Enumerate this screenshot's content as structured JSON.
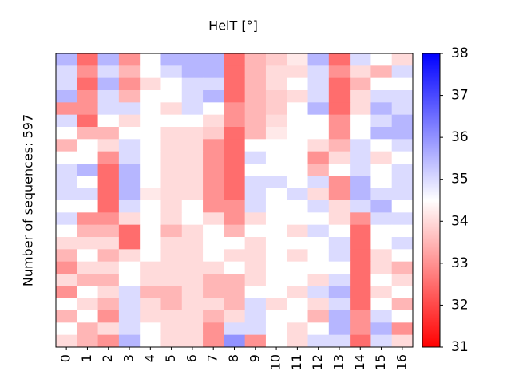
{
  "chart_data": {
    "type": "heatmap",
    "title": "HelT [°]",
    "y_label": "Number of sequences: 597",
    "x": [
      0,
      1,
      2,
      3,
      4,
      5,
      6,
      7,
      8,
      9,
      10,
      11,
      12,
      13,
      14,
      15,
      16
    ],
    "colormap": "bwr_r",
    "clim": [
      31,
      38
    ],
    "cticks": [
      31,
      32,
      33,
      34,
      35,
      36,
      37,
      38
    ],
    "values": [
      [
        35.5,
        32.5,
        35.5,
        33,
        34.5,
        35.5,
        35.5,
        35.5,
        32.5,
        33.5,
        33.8,
        34.2,
        35.5,
        32.5,
        35,
        34.5,
        34
      ],
      [
        35,
        33,
        35,
        33.5,
        34.5,
        35,
        35.5,
        35.5,
        32.5,
        33.5,
        34,
        34,
        35,
        33,
        34,
        33.5,
        35
      ],
      [
        35,
        32.5,
        35.5,
        33,
        34,
        34.5,
        35,
        35,
        32.5,
        33.5,
        34,
        34.5,
        35,
        32.5,
        33.5,
        34.5,
        34.5
      ],
      [
        35.5,
        33,
        35,
        33.5,
        34.5,
        34.5,
        35,
        35.5,
        32.5,
        33.5,
        33.8,
        34,
        35,
        32.5,
        34,
        35,
        35
      ],
      [
        33,
        33,
        35,
        35,
        34.5,
        34,
        35,
        34.5,
        33,
        33.5,
        33.8,
        34.5,
        35.5,
        32.5,
        34,
        35.5,
        35
      ],
      [
        35,
        32.5,
        34.5,
        34,
        34.5,
        34.5,
        34.5,
        34,
        33,
        33.5,
        34,
        34.5,
        34.5,
        33,
        34.5,
        35,
        35.5
      ],
      [
        34.5,
        33.5,
        33.5,
        34.5,
        34.5,
        34,
        34,
        33.8,
        32.5,
        33.5,
        34.2,
        34.5,
        34.5,
        33,
        34.5,
        35.5,
        35.5
      ],
      [
        33.5,
        34.5,
        34,
        35,
        34.5,
        34,
        34,
        33,
        32.5,
        34.5,
        34.5,
        34.5,
        34,
        33.5,
        35,
        34.5,
        35
      ],
      [
        34.5,
        34.5,
        33,
        35,
        34.5,
        34,
        34,
        33,
        32.5,
        35,
        34.5,
        34.5,
        33,
        34,
        35,
        34,
        34.5
      ],
      [
        35,
        35.5,
        32.5,
        35.5,
        34.5,
        34,
        34,
        33,
        32.5,
        34.5,
        34.5,
        34.5,
        33.5,
        34.5,
        35,
        34.5,
        35
      ],
      [
        35,
        34.5,
        32.5,
        35.5,
        34.5,
        34,
        34,
        33,
        32.5,
        35,
        35,
        34.5,
        35,
        33,
        35.5,
        34.5,
        35
      ],
      [
        35,
        35,
        32.5,
        35.5,
        34.2,
        34,
        34,
        33,
        32.5,
        35,
        34.5,
        35,
        34,
        33,
        35.5,
        35,
        35
      ],
      [
        34.5,
        34.5,
        32.5,
        35,
        34.5,
        34,
        34.5,
        33,
        33,
        35,
        34.5,
        34.5,
        35,
        34,
        35,
        35.5,
        34.5
      ],
      [
        35,
        33,
        33,
        34,
        34.5,
        34,
        34.5,
        34,
        33,
        34,
        34.5,
        34.5,
        34.5,
        34,
        33,
        35,
        35
      ],
      [
        34.5,
        33.5,
        33.5,
        32.5,
        34.5,
        33.5,
        34,
        34.5,
        33.5,
        34.5,
        34.5,
        34,
        35,
        34.5,
        32.5,
        34.5,
        34.5
      ],
      [
        34,
        34,
        34,
        32.5,
        34.5,
        34,
        34,
        34.5,
        34.5,
        34,
        34.5,
        34.5,
        34.5,
        35,
        32.5,
        34.5,
        35
      ],
      [
        33.5,
        34.5,
        33.5,
        34,
        34.5,
        34,
        34,
        34.5,
        34,
        34,
        34.5,
        34,
        34.5,
        35,
        32.5,
        34,
        34.5
      ],
      [
        33,
        34,
        34,
        34.5,
        34,
        34,
        34,
        34,
        34.5,
        34,
        34.5,
        34.5,
        34.5,
        34.5,
        32.5,
        34,
        33.5
      ],
      [
        34,
        33.5,
        33.5,
        34.5,
        34,
        34,
        34,
        33.5,
        33.5,
        34,
        34.5,
        34.5,
        34,
        35,
        32.5,
        34.5,
        34
      ],
      [
        33,
        34.5,
        34,
        35,
        33.5,
        33.5,
        34,
        33.5,
        33.5,
        34.5,
        34.5,
        34,
        35,
        35.5,
        32.5,
        34,
        34.5
      ],
      [
        34.5,
        34,
        33.5,
        35,
        34,
        33.5,
        34,
        34,
        33.5,
        35,
        34,
        34.5,
        34,
        35,
        32.5,
        34.5,
        33.5
      ],
      [
        33.5,
        34.5,
        33,
        35,
        34,
        34,
        34,
        33.5,
        34,
        35,
        34.5,
        34.5,
        33.5,
        35.5,
        33,
        35,
        34.5
      ],
      [
        34.5,
        33.5,
        34,
        35,
        34.5,
        34,
        34,
        33,
        35,
        35,
        34.5,
        34,
        34.5,
        35.5,
        33,
        35.5,
        33
      ],
      [
        34,
        33.5,
        33,
        35.5,
        34.5,
        34,
        34,
        33,
        36,
        33,
        34.5,
        34,
        35,
        35,
        32.5,
        35,
        34
      ]
    ]
  }
}
